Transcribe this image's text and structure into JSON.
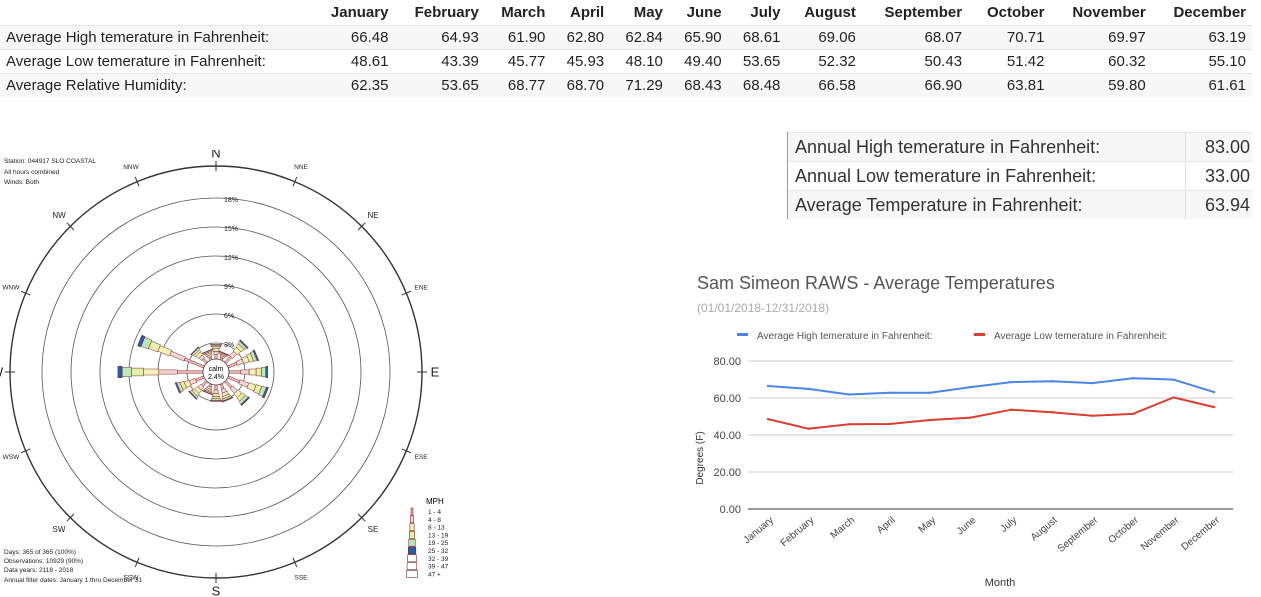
{
  "monthly_table": {
    "months": [
      "January",
      "February",
      "March",
      "April",
      "May",
      "June",
      "July",
      "August",
      "September",
      "October",
      "November",
      "December"
    ],
    "rows": [
      {
        "label": "Average High temerature in Fahrenheit:",
        "values": [
          "66.48",
          "64.93",
          "61.90",
          "62.80",
          "62.84",
          "65.90",
          "68.61",
          "69.06",
          "68.07",
          "70.71",
          "69.97",
          "63.19"
        ]
      },
      {
        "label": "Average Low temerature in Fahrenheit:",
        "values": [
          "48.61",
          "43.39",
          "45.77",
          "45.93",
          "48.10",
          "49.40",
          "53.65",
          "52.32",
          "50.43",
          "51.42",
          "60.32",
          "55.10"
        ]
      },
      {
        "label": "Average Relative Humidity:",
        "values": [
          "62.35",
          "53.65",
          "68.77",
          "68.70",
          "71.29",
          "68.43",
          "68.48",
          "66.58",
          "66.90",
          "63.81",
          "59.80",
          "61.61"
        ]
      }
    ]
  },
  "annual_table": [
    {
      "label": "Annual High temerature in Fahrenheit:",
      "value": "83.00"
    },
    {
      "label": "Annual Low temerature in Fahrenheit:",
      "value": "33.00"
    },
    {
      "label": "Average Temperature in Fahrenheit:",
      "value": "63.94"
    }
  ],
  "wind_rose": {
    "info": [
      "Station: 044917 SLO COASTAL",
      "All hours combined",
      "Winds: Both"
    ],
    "footer": [
      "Days: 365 of 365 (100%)",
      "Observations: 10929 (90%)",
      "Data years: 2118 - 2018",
      "Annual filter dates: January 1 thru December 31"
    ],
    "calm_label": "calm",
    "calm_value": "2.4%",
    "ring_labels": [
      "3%",
      "6%",
      "9%",
      "12%",
      "15%",
      "18%"
    ],
    "directions": [
      "N",
      "NNE",
      "NE",
      "ENE",
      "E",
      "ESE",
      "SE",
      "SSE",
      "S",
      "SSW",
      "SW",
      "WSW",
      "W",
      "WNW",
      "NW",
      "NNW"
    ],
    "direction_percent": [
      1.5,
      0.8,
      2.8,
      3.2,
      4.0,
      4.3,
      3.0,
      1.8,
      1.7,
      1.0,
      2.1,
      3.0,
      8.8,
      7.2,
      1.8,
      1.0
    ],
    "legend_title": "MPH",
    "legend": [
      {
        "label": "1 - 4",
        "color": "#f2b6b6"
      },
      {
        "label": "4 - 8",
        "color": "#f5d5d0"
      },
      {
        "label": "8 - 13",
        "color": "#f7f2b8"
      },
      {
        "label": "13 - 19",
        "color": "#e4f0a8"
      },
      {
        "label": "19 - 25",
        "color": "#bce8bc"
      },
      {
        "label": "25 - 32",
        "color": "#2a5aa8"
      },
      {
        "label": "32 - 39",
        "color": "#ffffff"
      },
      {
        "label": "39 - 47",
        "color": "#ffffff"
      },
      {
        "label": "47 +",
        "color": "#ffffff"
      }
    ]
  },
  "chart_data": {
    "type": "line",
    "title": "Sam Simeon RAWS - Average Temperatures",
    "subtitle": "(01/01/2018-12/31/2018)",
    "xlabel": "Month",
    "ylabel": "Degrees (F)",
    "ylim": [
      0,
      80
    ],
    "yticks": [
      "0.00",
      "20.00",
      "40.00",
      "60.00",
      "80.00"
    ],
    "categories": [
      "January",
      "February",
      "March",
      "April",
      "May",
      "June",
      "July",
      "August",
      "September",
      "October",
      "November",
      "December"
    ],
    "series": [
      {
        "name": "Average High temerature in Fahrenheit:",
        "color": "#4a86e8",
        "values": [
          66.48,
          64.93,
          61.9,
          62.8,
          62.84,
          65.9,
          68.61,
          69.06,
          68.07,
          70.71,
          69.97,
          63.19
        ]
      },
      {
        "name": "Average Low temerature in Fahrenheit:",
        "color": "#d93f2f",
        "values": [
          48.61,
          43.39,
          45.77,
          45.93,
          48.1,
          49.4,
          53.65,
          52.32,
          50.43,
          51.42,
          60.32,
          55.1
        ]
      }
    ],
    "grid": true,
    "legend_position": "top"
  }
}
